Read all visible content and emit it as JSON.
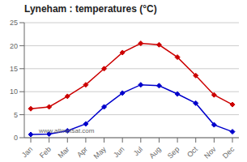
{
  "chart_data": {
    "type": "line",
    "title": "Lyneham : temperatures (°C)",
    "categories": [
      "Jan",
      "Feb",
      "Mar",
      "Apr",
      "May",
      "Jun",
      "Jul",
      "Aug",
      "Sep",
      "Oct",
      "Nov",
      "Dec"
    ],
    "series": [
      {
        "color": "#cc0000",
        "marker": "diamond",
        "values": [
          6.3,
          6.7,
          9.0,
          11.5,
          15.0,
          18.5,
          20.5,
          20.2,
          17.5,
          13.5,
          9.3,
          7.2
        ]
      },
      {
        "color": "#0000cc",
        "marker": "diamond",
        "values": [
          0.7,
          0.8,
          1.5,
          3.0,
          6.7,
          9.7,
          11.5,
          11.3,
          9.5,
          7.5,
          2.8,
          1.3
        ]
      }
    ],
    "ylim": [
      0,
      25
    ],
    "yticks": [
      0,
      5,
      10,
      15,
      20,
      25
    ],
    "grid": true,
    "annotations": [
      "www.allmetsat.com"
    ]
  }
}
